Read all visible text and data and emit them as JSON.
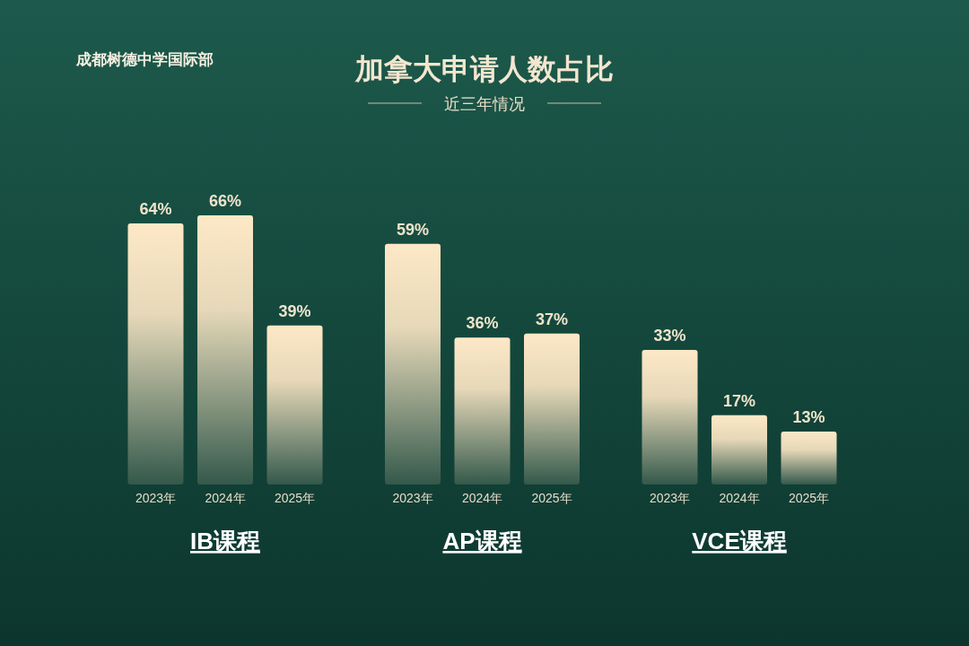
{
  "chart_data": {
    "type": "bar",
    "title": "加拿大申请人数占比",
    "subtitle": "近三年情况",
    "annotations": [
      "成都树德中学国际部"
    ],
    "categories": [
      "IB课程",
      "AP课程",
      "VCE课程"
    ],
    "series": [
      {
        "name": "2023年",
        "color": "#fde8c6",
        "values": [
          64,
          59,
          33
        ],
        "value_labels": [
          "64%",
          "59%",
          "33%"
        ]
      },
      {
        "name": "2024年",
        "color": "#fde8c6",
        "values": [
          66,
          36,
          17
        ],
        "value_labels": [
          "66%",
          "36%",
          "17%"
        ]
      },
      {
        "name": "2025年",
        "color": "#fde8c6",
        "values": [
          39,
          37,
          13
        ],
        "value_labels": [
          "39%",
          "37%",
          "13%"
        ]
      }
    ]
  }
}
